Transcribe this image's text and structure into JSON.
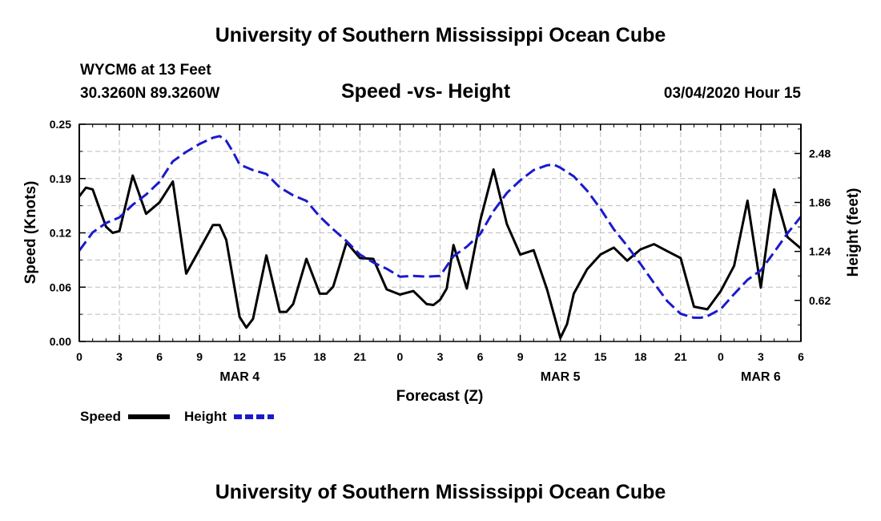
{
  "header": {
    "title": "University of Southern Mississippi Ocean Cube",
    "station": "WYCM6 at 13 Feet",
    "coords": "30.3260N 89.3260W",
    "chart_title": "Speed -vs- Height",
    "timestamp": "03/04/2020 Hour 15"
  },
  "footer": {
    "title": "University of Southern Mississippi Ocean Cube"
  },
  "colors": {
    "speed": "#000000",
    "height": "#1a1acc",
    "grid": "#bbbbbb"
  },
  "chart_data": {
    "type": "line",
    "title": "Speed -vs- Height",
    "xlabel": "Forecast (Z)",
    "ylabel": "Speed (Knots)",
    "ylabel_right": "Height (feet)",
    "xlim": [
      0,
      54
    ],
    "ylim": [
      0,
      0.25
    ],
    "ylim_right": [
      0.1,
      2.85
    ],
    "x_ticks": [
      0,
      3,
      6,
      9,
      12,
      15,
      18,
      21,
      24,
      27,
      30,
      33,
      36,
      39,
      42,
      45,
      48,
      51,
      54
    ],
    "x_tick_labels": [
      "0",
      "3",
      "6",
      "9",
      "12",
      "15",
      "18",
      "21",
      "0",
      "3",
      "6",
      "9",
      "12",
      "15",
      "18",
      "21",
      "0",
      "3",
      "6"
    ],
    "date_labels": [
      {
        "x": 12,
        "label": "MAR 4"
      },
      {
        "x": 36,
        "label": "MAR 5"
      },
      {
        "x": 51,
        "label": "MAR 6"
      }
    ],
    "y_ticks_left": [
      "0.00",
      "0.06",
      "0.12",
      "0.19",
      "0.25"
    ],
    "y_tick_values_left": [
      0,
      0.0625,
      0.125,
      0.1875,
      0.25
    ],
    "y_ticks_right": [
      "0.62",
      "1.24",
      "1.86",
      "2.48"
    ],
    "y_tick_values_right": [
      0.62,
      1.24,
      1.86,
      2.48
    ],
    "grid": true,
    "legend": [
      {
        "name": "Speed",
        "style": "solid"
      },
      {
        "name": "Height",
        "style": "dashed"
      }
    ],
    "legend_position": "bottom-left",
    "series": [
      {
        "name": "Speed",
        "axis": "left",
        "x": [
          0,
          0.5,
          1,
          2,
          2.5,
          3,
          4,
          5,
          6,
          7,
          8,
          9,
          10,
          10.5,
          11,
          12,
          12.5,
          13,
          14,
          15,
          15.5,
          16,
          17,
          18,
          18.5,
          19,
          20,
          21,
          22,
          23,
          24,
          25,
          26,
          26.5,
          27,
          27.5,
          28,
          29,
          30,
          31,
          32,
          33,
          34,
          35,
          36,
          36.5,
          37,
          38,
          39,
          40,
          41,
          42,
          43,
          44,
          45,
          46,
          47,
          48,
          49,
          50,
          51,
          52,
          53,
          54
        ],
        "values": [
          0.167,
          0.177,
          0.175,
          0.132,
          0.125,
          0.127,
          0.191,
          0.147,
          0.16,
          0.184,
          0.078,
          0.106,
          0.134,
          0.134,
          0.117,
          0.028,
          0.016,
          0.026,
          0.099,
          0.034,
          0.034,
          0.043,
          0.095,
          0.055,
          0.055,
          0.063,
          0.114,
          0.096,
          0.095,
          0.06,
          0.054,
          0.058,
          0.043,
          0.042,
          0.048,
          0.061,
          0.111,
          0.061,
          0.139,
          0.198,
          0.135,
          0.1,
          0.105,
          0.06,
          0.004,
          0.02,
          0.055,
          0.083,
          0.1,
          0.108,
          0.093,
          0.106,
          0.112,
          0.104,
          0.096,
          0.04,
          0.037,
          0.058,
          0.087,
          0.162,
          0.062,
          0.175,
          0.12,
          0.107
        ]
      },
      {
        "name": "Height",
        "axis": "right",
        "x": [
          0,
          1,
          2,
          3,
          4,
          5,
          6,
          7,
          8,
          9,
          10,
          10.5,
          11,
          11.5,
          12,
          13,
          14,
          15,
          16,
          17,
          18,
          19,
          20,
          21,
          22,
          23,
          24,
          25,
          26,
          27,
          28,
          29,
          30,
          31,
          32,
          33,
          34,
          35,
          35.5,
          36,
          37,
          38,
          39,
          40,
          41,
          42,
          43,
          44,
          45,
          46,
          46.5,
          47,
          48,
          49,
          50,
          51,
          52,
          53,
          54
        ],
        "values": [
          1.25,
          1.48,
          1.6,
          1.67,
          1.83,
          1.96,
          2.12,
          2.38,
          2.5,
          2.6,
          2.68,
          2.7,
          2.64,
          2.5,
          2.34,
          2.27,
          2.22,
          2.05,
          1.95,
          1.88,
          1.68,
          1.52,
          1.37,
          1.2,
          1.1,
          1.02,
          0.92,
          0.93,
          0.92,
          0.93,
          1.18,
          1.3,
          1.46,
          1.75,
          1.98,
          2.14,
          2.27,
          2.33,
          2.34,
          2.3,
          2.19,
          2.01,
          1.78,
          1.52,
          1.31,
          1.08,
          0.84,
          0.61,
          0.45,
          0.4,
          0.4,
          0.42,
          0.51,
          0.7,
          0.88,
          1.0,
          1.23,
          1.47,
          1.68
        ]
      }
    ]
  }
}
